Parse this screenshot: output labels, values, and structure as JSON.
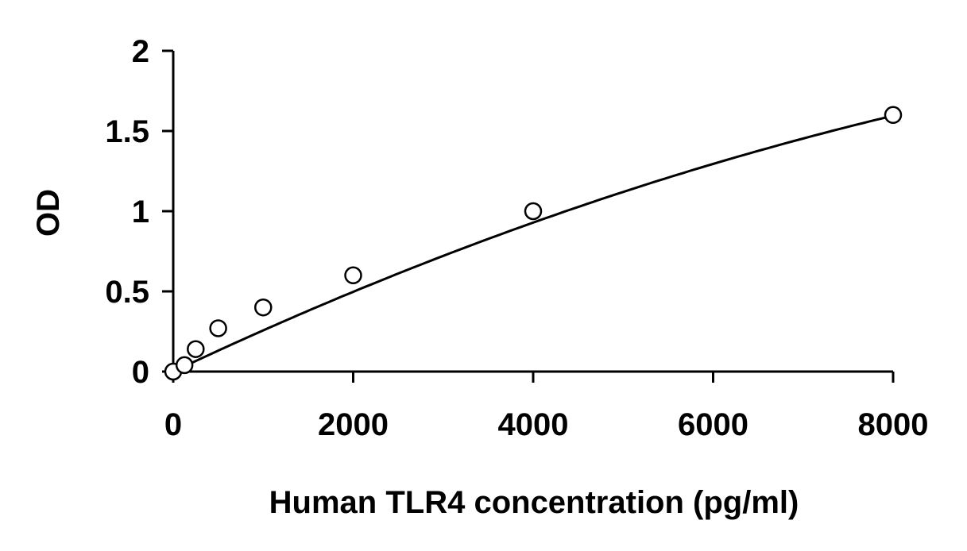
{
  "chart_data": {
    "type": "scatter",
    "title": "",
    "xlabel": "Human TLR4 concentration (pg/ml)",
    "ylabel": "OD",
    "xlim": [
      0,
      8000
    ],
    "ylim": [
      0,
      2
    ],
    "x_ticks": [
      0,
      2000,
      4000,
      6000,
      8000
    ],
    "y_ticks": [
      0,
      0.5,
      1,
      1.5,
      2
    ],
    "x_tick_labels": [
      "0",
      "2000",
      "4000",
      "6000",
      "8000"
    ],
    "y_tick_labels": [
      "0",
      "0.5",
      "1",
      "1.5",
      "2"
    ],
    "grid": false,
    "legend": "none",
    "marker": "open-circle",
    "trendline": "fitted-curve",
    "series": [
      {
        "x": [
          0,
          125,
          250,
          500,
          1000,
          2000,
          4000,
          8000
        ],
        "y": [
          0.0,
          0.04,
          0.14,
          0.27,
          0.4,
          0.6,
          1.0,
          1.6
        ]
      }
    ],
    "colors": {
      "axis": "#000000",
      "marker_fill": "#ffffff",
      "curve": "#000000"
    }
  }
}
